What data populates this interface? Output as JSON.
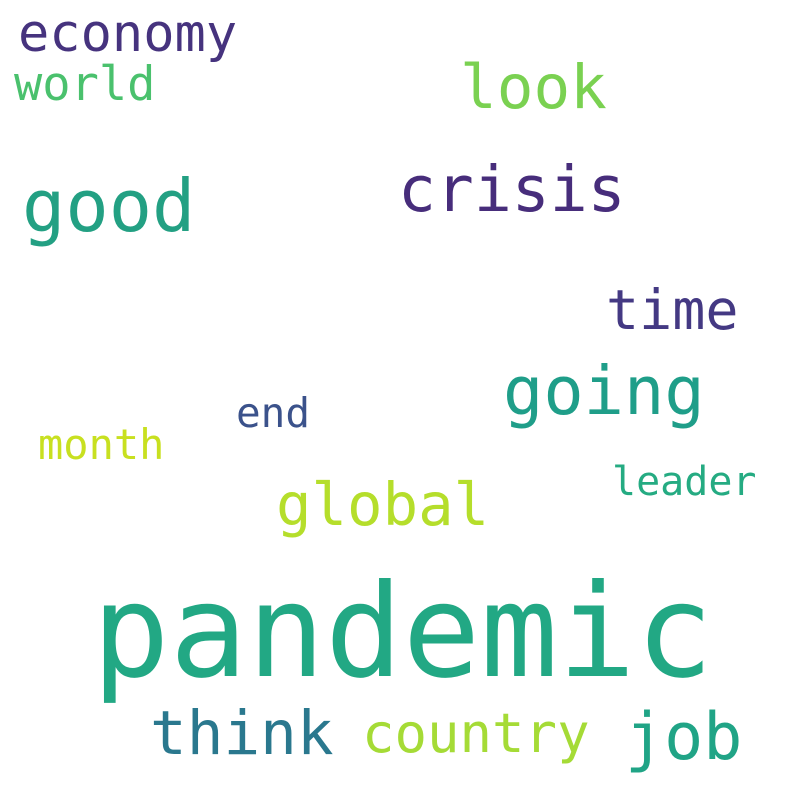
{
  "word_cloud": {
    "background": "#ffffff",
    "words": {
      "pandemic": {
        "text": "pandemic",
        "color": "#22a884"
      },
      "good": {
        "text": "good",
        "color": "#23a083"
      },
      "crisis": {
        "text": "crisis",
        "color": "#472d7b"
      },
      "look": {
        "text": "look",
        "color": "#7ad151"
      },
      "economy": {
        "text": "economy",
        "color": "#46337e"
      },
      "world": {
        "text": "world",
        "color": "#4ac16d"
      },
      "time": {
        "text": "time",
        "color": "#443983"
      },
      "going": {
        "text": "going",
        "color": "#1f9e89"
      },
      "end": {
        "text": "end",
        "color": "#3b528b"
      },
      "month": {
        "text": "month",
        "color": "#c8e020"
      },
      "leader": {
        "text": "leader",
        "color": "#25ab82"
      },
      "global": {
        "text": "global",
        "color": "#b5de2b"
      },
      "think": {
        "text": "think",
        "color": "#2a788e"
      },
      "country": {
        "text": "country",
        "color": "#a5db36"
      },
      "job": {
        "text": "job",
        "color": "#20a486"
      }
    }
  }
}
